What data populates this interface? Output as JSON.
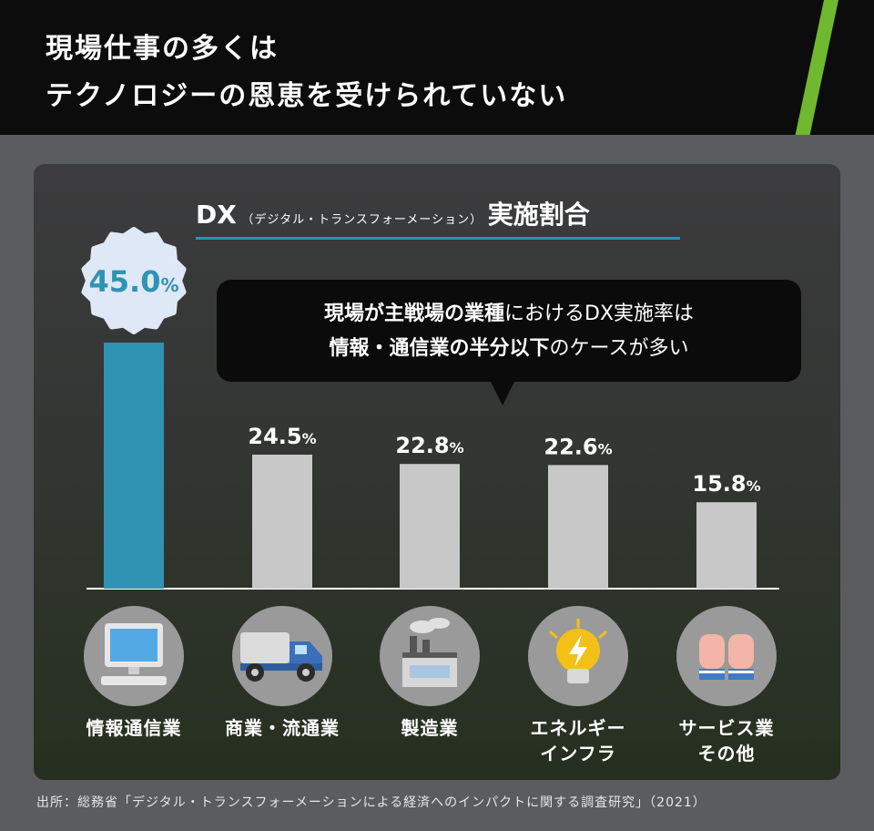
{
  "header": {
    "title_line1": "現場仕事の多くは",
    "title_line2": "テクノロジーの恩恵を受けられていない"
  },
  "chart_title": {
    "main": "DX",
    "sub": "（デジタル・トランスフォーメーション）",
    "suffix": "実施割合"
  },
  "callout": {
    "line1_bold": "現場が主戦場の業種",
    "line1_rest": "におけるDX実施率は",
    "line2_bold": "情報・通信業の半分以下",
    "line2_rest": "のケースが多い"
  },
  "chart_data": {
    "type": "bar",
    "title": "DX（デジタル・トランスフォーメーション）実施割合",
    "categories": [
      "情報通信業",
      "商業・流通業",
      "製造業",
      "エネルギーインフラ",
      "サービス業その他"
    ],
    "category_lines": [
      [
        "情報通信業"
      ],
      [
        "商業・流通業"
      ],
      [
        "製造業"
      ],
      [
        "エネルギー",
        "インフラ"
      ],
      [
        "サービス業",
        "その他"
      ]
    ],
    "values": [
      45.0,
      24.5,
      22.8,
      22.6,
      15.8
    ],
    "unit": "%",
    "value_labels": [
      "45.0",
      "24.5",
      "22.8",
      "22.6",
      "15.8"
    ],
    "ylim": [
      0,
      50
    ],
    "colors": [
      "#2f93b3",
      "#c8c8c8",
      "#c8c8c8",
      "#c8c8c8",
      "#c8c8c8"
    ],
    "highlight_label_color": "#2f93b3",
    "icons": [
      "computer-icon",
      "truck-icon",
      "factory-icon",
      "lightning-bulb-icon",
      "gloved-hands-icon"
    ]
  },
  "source": "出所：総務省「デジタル・トランスフォーメーションによる経済へのインパクトに関する調査研究」（2021）"
}
